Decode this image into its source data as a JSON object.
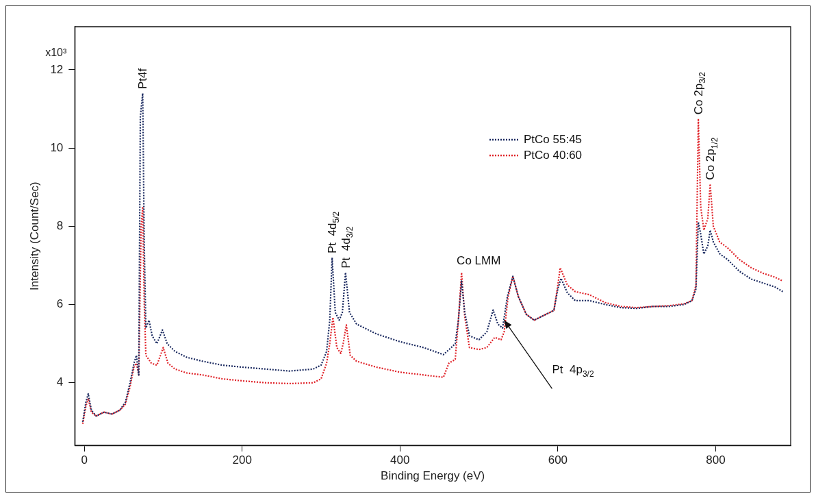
{
  "chart_data": {
    "type": "line",
    "xlabel": "Binding Energy (eV)",
    "ylabel": "Intensity (Count/Sec)",
    "xlim": [
      -12,
      895
    ],
    "xticks": [
      0,
      200,
      400,
      600,
      800
    ],
    "ylim": [
      2.4,
      13.1
    ],
    "yticks": [
      4,
      6,
      8,
      10,
      12
    ],
    "legend": "top right",
    "marker": "none",
    "line_style": "dotted",
    "series": [
      {
        "name": "PtCo 55:45",
        "color": "#1b2a60",
        "x": [
          -2,
          2,
          5,
          9,
          15,
          25,
          35,
          45,
          52,
          58,
          63,
          66,
          69,
          71,
          74,
          76,
          78,
          82,
          86,
          92,
          99,
          105,
          115,
          130,
          150,
          175,
          200,
          230,
          260,
          290,
          300,
          307,
          311,
          314,
          318,
          323,
          327,
          331,
          336,
          345,
          370,
          400,
          430,
          455,
          465,
          470,
          474,
          478,
          482,
          488,
          500,
          510,
          518,
          524,
          530,
          536,
          543,
          550,
          560,
          570,
          585,
          595,
          600,
          604,
          612,
          622,
          640,
          660,
          680,
          700,
          720,
          740,
          760,
          770,
          775,
          778,
          781,
          785,
          790,
          793,
          797,
          805,
          815,
          830,
          845,
          860,
          875,
          885
        ],
        "values": [
          3.0,
          3.5,
          3.72,
          3.3,
          3.15,
          3.25,
          3.2,
          3.3,
          3.5,
          4.0,
          4.5,
          4.7,
          4.2,
          10.8,
          11.4,
          7.5,
          5.4,
          5.6,
          5.2,
          5.0,
          5.35,
          5.0,
          4.8,
          4.65,
          4.55,
          4.45,
          4.4,
          4.35,
          4.3,
          4.35,
          4.45,
          4.8,
          5.6,
          7.2,
          5.8,
          5.6,
          5.8,
          6.82,
          5.8,
          5.5,
          5.25,
          5.05,
          4.9,
          4.72,
          4.9,
          5.0,
          5.6,
          6.6,
          5.8,
          5.2,
          5.1,
          5.3,
          5.86,
          5.5,
          5.4,
          6.2,
          6.72,
          6.2,
          5.75,
          5.6,
          5.75,
          5.85,
          6.4,
          6.67,
          6.3,
          6.1,
          6.1,
          6.0,
          5.92,
          5.9,
          5.95,
          5.95,
          6.0,
          6.1,
          6.4,
          8.11,
          7.8,
          7.29,
          7.5,
          7.9,
          7.6,
          7.3,
          7.15,
          6.85,
          6.65,
          6.55,
          6.45,
          6.33
        ]
      },
      {
        "name": "PtCo 40:60",
        "color": "#e0242a",
        "x": [
          -2,
          2,
          5,
          9,
          15,
          25,
          35,
          45,
          52,
          58,
          63,
          66,
          69,
          72,
          74,
          76,
          78,
          85,
          92,
          100,
          106,
          115,
          130,
          150,
          175,
          200,
          230,
          260,
          290,
          300,
          307,
          311,
          315,
          320,
          325,
          328,
          332,
          337,
          345,
          370,
          400,
          430,
          455,
          462,
          470,
          474,
          478,
          482,
          488,
          500,
          510,
          520,
          528,
          532,
          537,
          543,
          550,
          560,
          570,
          585,
          595,
          600,
          603,
          612,
          622,
          640,
          660,
          680,
          700,
          720,
          740,
          760,
          770,
          775,
          778,
          781,
          785,
          790,
          793,
          797,
          805,
          815,
          830,
          845,
          860,
          875,
          885
        ],
        "values": [
          2.95,
          3.4,
          3.6,
          3.25,
          3.15,
          3.25,
          3.2,
          3.3,
          3.45,
          3.9,
          4.4,
          4.5,
          4.2,
          8.0,
          8.5,
          6.0,
          4.7,
          4.5,
          4.45,
          4.9,
          4.5,
          4.35,
          4.25,
          4.2,
          4.1,
          4.05,
          4.0,
          3.98,
          4.0,
          4.1,
          4.5,
          5.0,
          5.67,
          4.9,
          4.75,
          5.0,
          5.48,
          4.7,
          4.55,
          4.4,
          4.27,
          4.2,
          4.14,
          4.5,
          4.6,
          5.6,
          6.82,
          5.7,
          4.9,
          4.85,
          4.9,
          5.16,
          5.1,
          5.3,
          6.2,
          6.72,
          6.2,
          5.75,
          5.6,
          5.75,
          5.85,
          6.5,
          6.94,
          6.5,
          6.33,
          6.25,
          6.05,
          5.95,
          5.92,
          5.95,
          5.97,
          6.02,
          6.1,
          6.5,
          10.75,
          8.5,
          7.9,
          8.2,
          9.08,
          8.0,
          7.6,
          7.45,
          7.15,
          6.94,
          6.8,
          6.7,
          6.6
        ]
      }
    ],
    "annotations": [
      "x10³",
      {
        "text": "Pt4f",
        "x": 74,
        "y": 11.4
      },
      {
        "text": "Pt  4d$_{5/2}$",
        "x": 314,
        "y": 7.2
      },
      {
        "text": "Pt  4d$_{3/2}$",
        "x": 331,
        "y": 6.82
      },
      {
        "text": "Co LMM",
        "x": 478,
        "y": 6.82
      },
      {
        "text": "Pt  4p$_{3/2}$",
        "x": 532,
        "y": 5.6
      },
      {
        "text": "Co 2p$_{3/2}$",
        "x": 778,
        "y": 10.75
      },
      {
        "text": "Co 2p$_{1/2}$",
        "x": 793,
        "y": 9.08
      }
    ]
  }
}
